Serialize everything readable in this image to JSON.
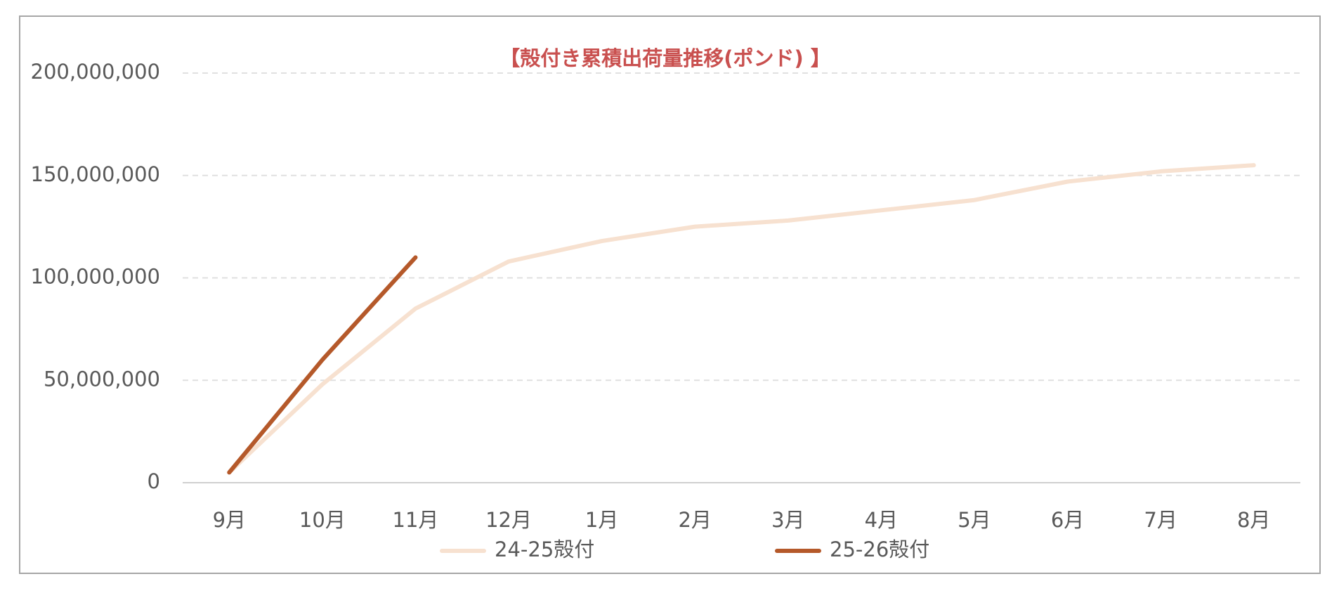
{
  "chart_data": {
    "type": "line",
    "title": "【殻付き累積出荷量推移(ポンド) 】",
    "title_color": "#c9504f",
    "categories": [
      "9月",
      "10月",
      "11月",
      "12月",
      "1月",
      "2月",
      "3月",
      "4月",
      "5月",
      "6月",
      "7月",
      "8月"
    ],
    "series": [
      {
        "name": "24-25殻付",
        "color": "#f7e1d0",
        "values": [
          5000000,
          48000000,
          85000000,
          108000000,
          118000000,
          125000000,
          128000000,
          133000000,
          138000000,
          147000000,
          152000000,
          155000000
        ]
      },
      {
        "name": "25-26殻付",
        "color": "#b5592a",
        "values": [
          5000000,
          60000000,
          110000000,
          null,
          null,
          null,
          null,
          null,
          null,
          null,
          null,
          null
        ]
      }
    ],
    "ylim": [
      0,
      200000000
    ],
    "yticks": [
      0,
      {
        "value": 50000000,
        "label": "50,000,000"
      },
      {
        "value": 100000000,
        "label": "100,000,000"
      },
      {
        "value": 150000000,
        "label": "150,000,000"
      },
      {
        "value": 200000000,
        "label": "200,000,000"
      }
    ],
    "grid": true,
    "legend": "bottom"
  }
}
